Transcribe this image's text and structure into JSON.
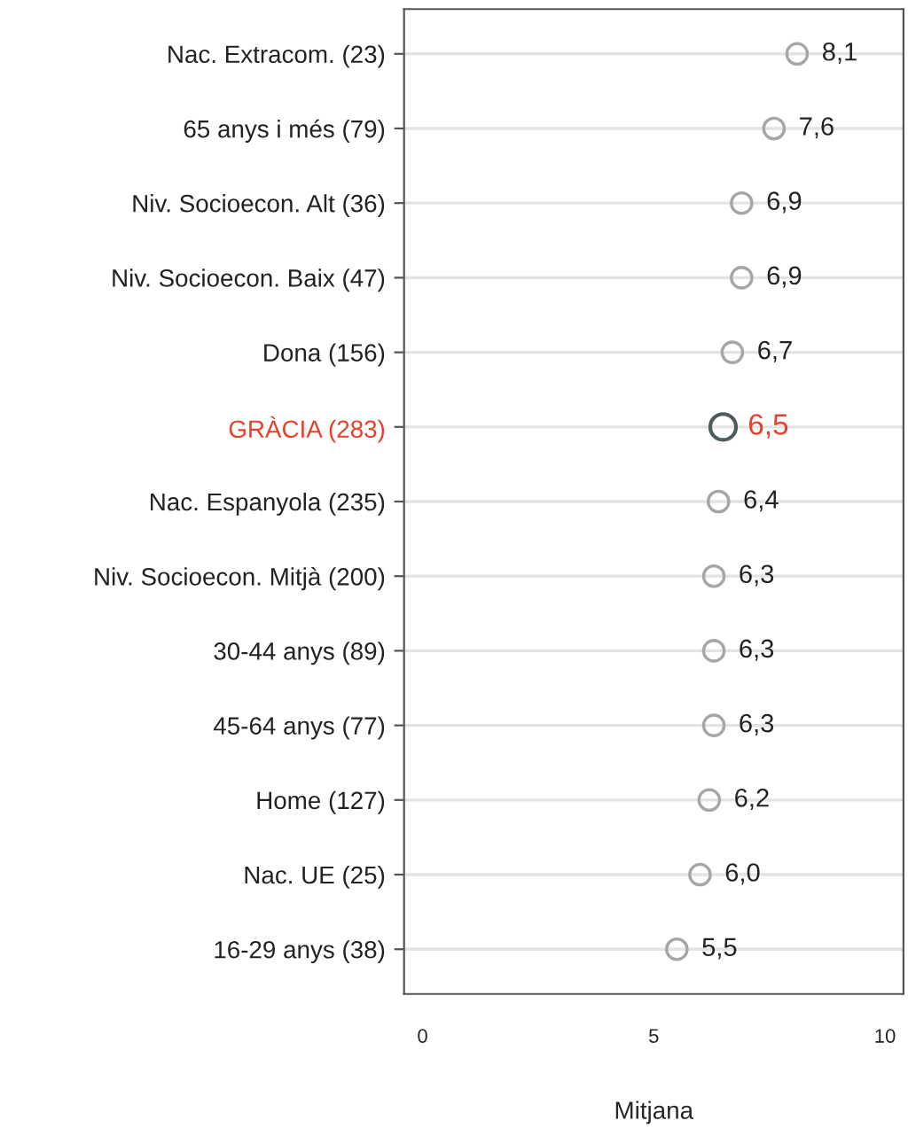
{
  "chart_data": {
    "type": "scatter",
    "orientation": "horizontal",
    "xlabel": "Mitjana",
    "categories": [
      "Nac. Extracom. (23)",
      "65 anys i més (79)",
      "Niv. Socioecon. Alt (36)",
      "Niv. Socioecon. Baix (47)",
      "Dona (156)",
      "GRÀCIA (283)",
      "Nac. Espanyola (235)",
      "Niv. Socioecon. Mitjà (200)",
      "30-44 anys (89)",
      "45-64 anys (77)",
      "Home (127)",
      "Nac. UE (25)",
      "16-29 anys (38)"
    ],
    "values": [
      8.1,
      7.6,
      6.9,
      6.9,
      6.7,
      6.5,
      6.4,
      6.3,
      6.3,
      6.3,
      6.2,
      6.0,
      5.5
    ],
    "value_labels": [
      "8,1",
      "7,6",
      "6,9",
      "6,9",
      "6,7",
      "6,5",
      "6,4",
      "6,3",
      "6,3",
      "6,3",
      "6,2",
      "6,0",
      "5,5"
    ],
    "colors": [
      "#a6a6a6",
      "#a6a6a6",
      "#a6a6a6",
      "#a6a6a6",
      "#a6a6a6",
      "#4d5c5c",
      "#a6a6a6",
      "#a6a6a6",
      "#a6a6a6",
      "#a6a6a6",
      "#a6a6a6",
      "#a6a6a6",
      "#a6a6a6"
    ],
    "xlim": [
      -0.4,
      10.4
    ],
    "xticks": [
      0,
      5,
      10
    ],
    "grid": "y",
    "marker": "circle",
    "legend": false
  }
}
